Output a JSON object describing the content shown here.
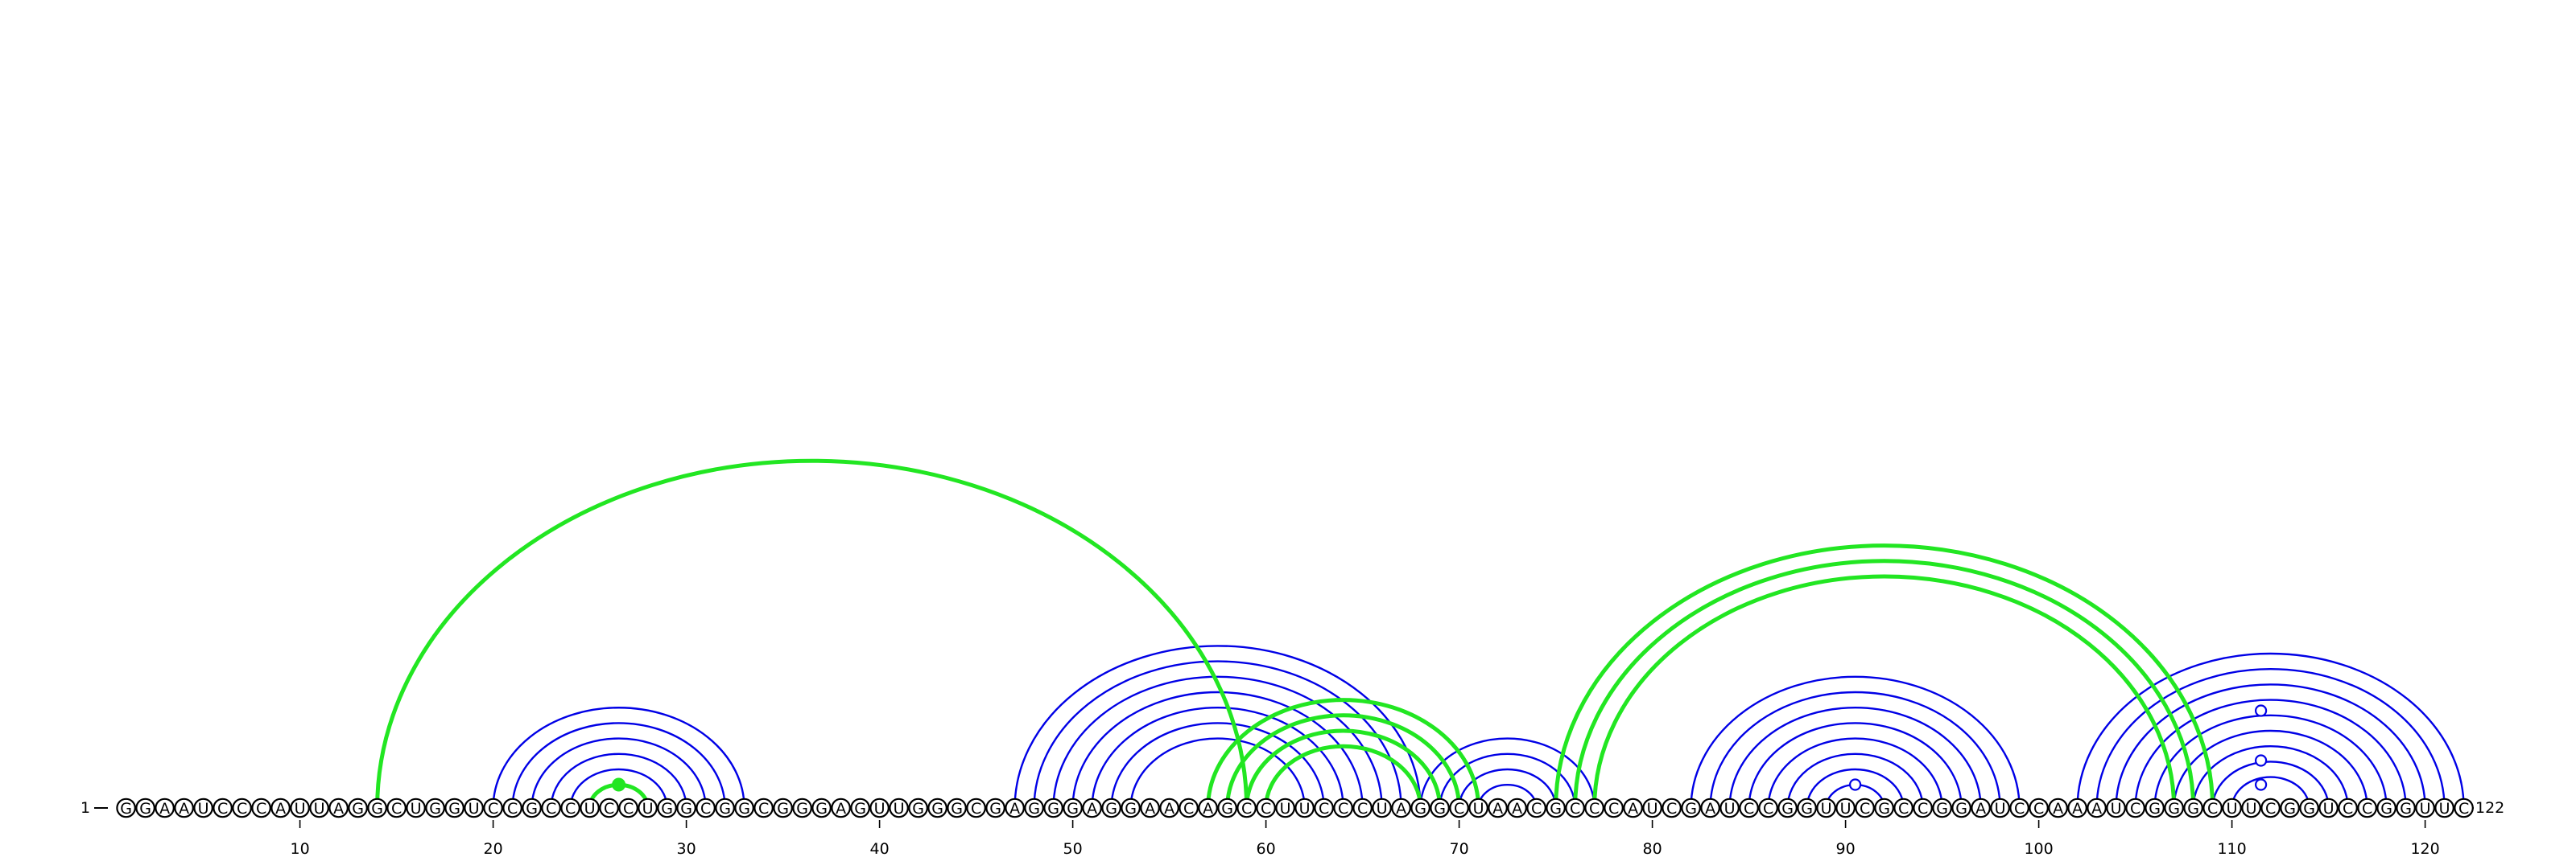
{
  "sequence": "GGAAUCCCAUUAGGCUGGUCCGCCUCCUGGCGGCGGGAGUUGGGCGAGGGAGGAACAGCCUUCCCUAGGCUAACGCCCAUCGAUCCGGUUCGCCGGAUCCAAAUCGGGCUUCGGUCCGGUUC",
  "start_label": "1",
  "end_label": "122",
  "ticks": [
    10,
    20,
    30,
    40,
    50,
    60,
    70,
    80,
    90,
    100,
    110,
    120
  ],
  "colors": {
    "primary_pairs": "#0000e6",
    "alternative_pairs": "#22e622",
    "backbone_text": "#000000"
  },
  "blue_pairs": [
    [
      20,
      33
    ],
    [
      21,
      32
    ],
    [
      22,
      31
    ],
    [
      23,
      30
    ],
    [
      24,
      29
    ],
    [
      25,
      28
    ],
    [
      47,
      68
    ],
    [
      48,
      67
    ],
    [
      49,
      66
    ],
    [
      50,
      65
    ],
    [
      51,
      64
    ],
    [
      52,
      63
    ],
    [
      53,
      62
    ],
    [
      68,
      77
    ],
    [
      69,
      76
    ],
    [
      70,
      75
    ],
    [
      71,
      74
    ],
    [
      82,
      99
    ],
    [
      83,
      98
    ],
    [
      84,
      97
    ],
    [
      85,
      96
    ],
    [
      86,
      95
    ],
    [
      87,
      94
    ],
    [
      88,
      93
    ],
    [
      89,
      92
    ],
    [
      102,
      122
    ],
    [
      103,
      121
    ],
    [
      104,
      120
    ],
    [
      105,
      119
    ],
    [
      106,
      118
    ],
    [
      107,
      117
    ],
    [
      108,
      116
    ],
    [
      109,
      115
    ],
    [
      110,
      114
    ]
  ],
  "green_pairs": [
    [
      14,
      59
    ],
    [
      25,
      28
    ],
    [
      57,
      71
    ],
    [
      58,
      70
    ],
    [
      59,
      69
    ],
    [
      60,
      68
    ],
    [
      75,
      109
    ],
    [
      76,
      108
    ],
    [
      77,
      107
    ]
  ],
  "green_markers": [
    26.5
  ],
  "open_markers": [
    {
      "pos": 90.5,
      "row": 1
    },
    {
      "pos": 111.5,
      "row": 1
    },
    {
      "pos": 111.5,
      "row": 2
    },
    {
      "pos": 111.5,
      "row": 4
    }
  ]
}
